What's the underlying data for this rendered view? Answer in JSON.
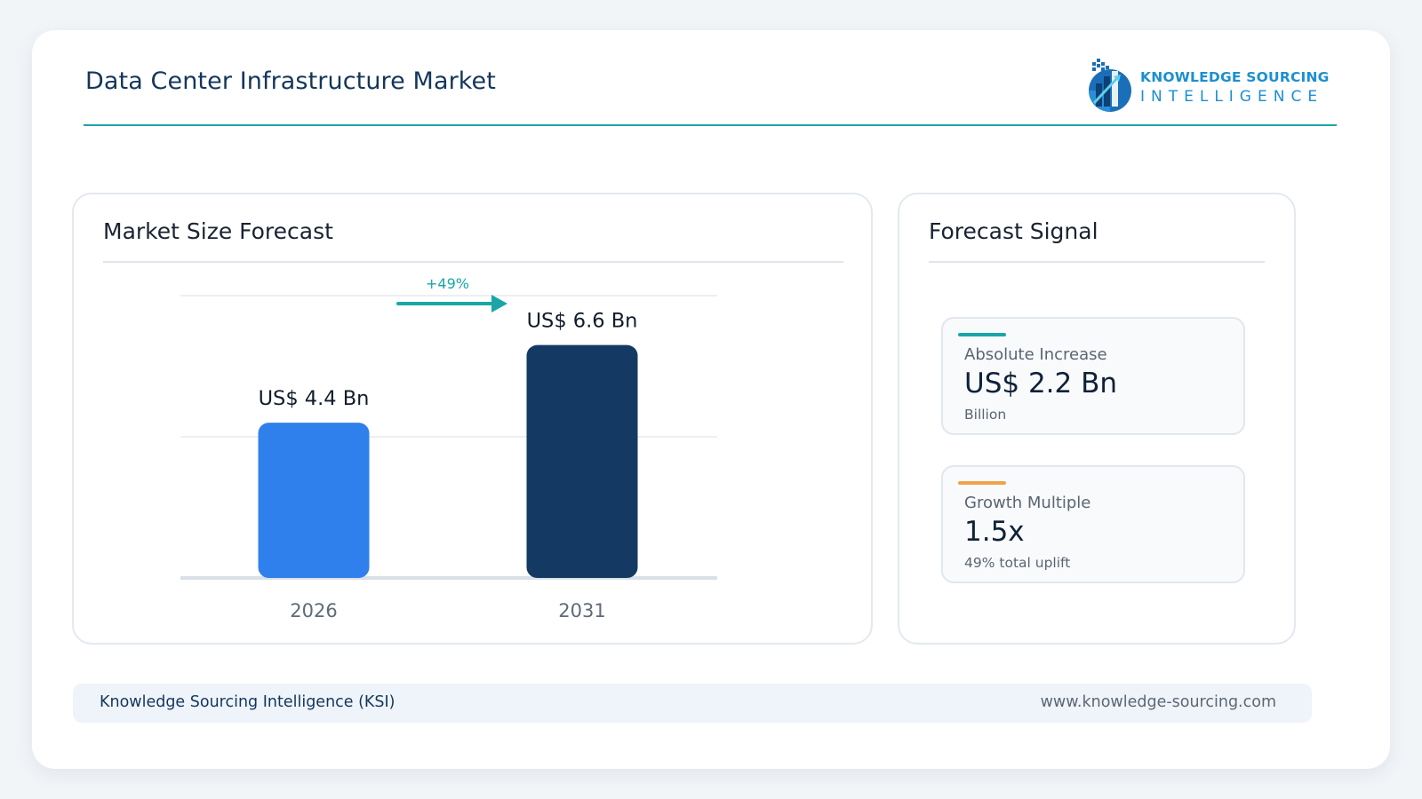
{
  "header": {
    "title": "Data Center Infrastructure Market",
    "logo": {
      "line1": "KNOWLEDGE SOURCING",
      "line2": "INTELLIGENCE",
      "icon": "bar-chart-globe-logo"
    }
  },
  "colors": {
    "accent_teal": "#1aa6a8",
    "bar_2026": "#2f80ed",
    "bar_2031": "#143a63",
    "growth_accent": "#f0a24a",
    "title_navy": "#14365c"
  },
  "market_panel": {
    "title": "Market Size Forecast"
  },
  "chart_data": {
    "type": "bar",
    "categories": [
      "2026",
      "2031"
    ],
    "values": [
      4.4,
      6.6
    ],
    "data_labels": [
      "US$ 4.4 Bn",
      "US$ 6.6 Bn"
    ],
    "units": "US$ Bn",
    "ylim": [
      0,
      8
    ],
    "grid": true,
    "growth_annotation": "+49%"
  },
  "signal_panel": {
    "title": "Forecast Signal",
    "cards": [
      {
        "label": "Absolute Increase",
        "value": "US$ 2.2 Bn",
        "sub": "Billion",
        "accent": "#1aa6a8"
      },
      {
        "label": "Growth Multiple",
        "value": "1.5x",
        "sub": "49% total uplift",
        "accent": "#f0a24a"
      }
    ]
  },
  "footer": {
    "left": "Knowledge Sourcing Intelligence (KSI)",
    "right": "www.knowledge-sourcing.com"
  }
}
